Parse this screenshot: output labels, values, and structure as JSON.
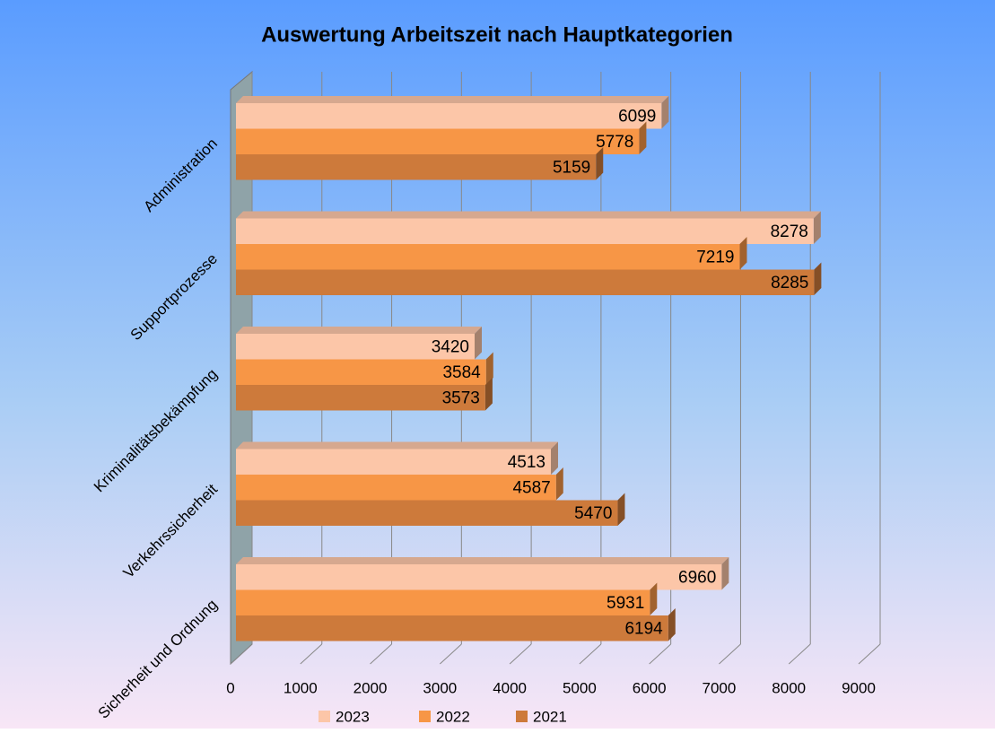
{
  "chart_data": {
    "type": "hbar3d",
    "title": "Auswertung Arbeitszeit nach Hauptkategorien",
    "categories": [
      "Administration",
      "Supportprozesse",
      "Kriminalitätsbekämpfung",
      "Verkehrssicherheit",
      "Sicherheit und Ordnung"
    ],
    "series": [
      {
        "name": "2023",
        "color": "#fcc6a8",
        "values": [
          6099,
          8278,
          3420,
          4513,
          6960
        ]
      },
      {
        "name": "2022",
        "color": "#f79646",
        "values": [
          5778,
          7219,
          3584,
          4587,
          5931
        ]
      },
      {
        "name": "2021",
        "color": "#cd7a3b",
        "values": [
          5159,
          8285,
          3573,
          5470,
          6194
        ]
      }
    ],
    "xlim": [
      0,
      9000
    ],
    "xticks": [
      0,
      1000,
      2000,
      3000,
      4000,
      5000,
      6000,
      7000,
      8000,
      9000
    ],
    "grid": true,
    "legend": "bottom"
  }
}
